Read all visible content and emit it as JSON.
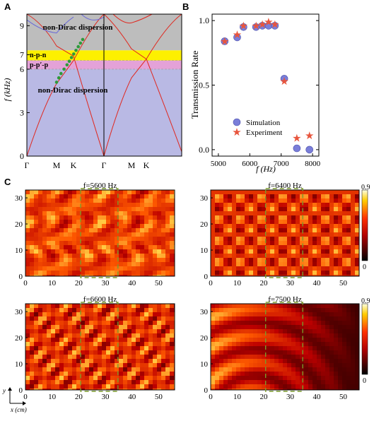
{
  "panels": {
    "A": {
      "letter": "A",
      "ylabel": "f (kHz)",
      "ytick_labels": [
        "0",
        "3",
        "6",
        "7",
        "9"
      ],
      "yticks": [
        0,
        3,
        6,
        7,
        9
      ],
      "xtick_labels": [
        "Γ",
        "M",
        "K",
        "Γ",
        "M",
        "K"
      ],
      "region_labels": {
        "top": "non-Dirac dispersion",
        "npn": "n-p-n",
        "ppp": "p-p′-p",
        "bottom": "non-Dirac dispersion"
      },
      "colors": {
        "gray_region": "#bdbdbd",
        "yellow_region": "#fdf000",
        "pink_region": "#e4a2d8",
        "blue_region": "#b9b9e4",
        "band_left": "#e0281f",
        "band_blue": "#6a6ad8",
        "dots": "#2e9a3a"
      },
      "ylim": [
        0,
        9.8
      ]
    },
    "B": {
      "letter": "B",
      "ylabel": "Transmission Rate",
      "xlabel": "f (Hz)",
      "legend_simulation": "Simulation",
      "legend_experiment": "Experiment",
      "ytick_labels": [
        "0.0",
        "0.5",
        "1.0"
      ],
      "xtick_labels": [
        "5000",
        "6000",
        "7000",
        "8000"
      ]
    },
    "C": {
      "letter": "C",
      "colorbar_max": "0.9",
      "colorbar_min": "0",
      "ytick_labels": [
        "0",
        "10",
        "20",
        "30"
      ],
      "xtick_labels": [
        "0",
        "10",
        "20",
        "30",
        "40",
        "50"
      ],
      "axis_y_label": "y",
      "axis_x_label": "x (cm)",
      "maps": [
        {
          "title": "f=5600 Hz",
          "frequency": 5600,
          "pattern": "wavy"
        },
        {
          "title": "f=6400 Hz",
          "frequency": 6400,
          "pattern": "dots"
        },
        {
          "title": "f=6600 Hz",
          "frequency": 6600,
          "pattern": "diagonal"
        },
        {
          "title": "f=7500 Hz",
          "frequency": 7500,
          "pattern": "decay"
        }
      ]
    }
  },
  "chart_data": [
    {
      "type": "line",
      "title": "",
      "ylabel": "f (kHz)",
      "xlabel": "",
      "ylim": [
        0,
        9.8
      ],
      "regions": [
        {
          "name": "non-Dirac dispersion",
          "from": 7.3,
          "to": 9.8
        },
        {
          "name": "n-p-n",
          "from": 6.6,
          "to": 7.3
        },
        {
          "name": "p-p′-p",
          "from": 6.0,
          "to": 6.6
        },
        {
          "name": "non-Dirac dispersion",
          "from": 0,
          "to": 6.0
        }
      ],
      "dirac_points": [
        {
          "k": 0.6,
          "f": 5.1
        },
        {
          "k": 0.63,
          "f": 5.4
        },
        {
          "k": 0.66,
          "f": 5.7
        },
        {
          "k": 0.7,
          "f": 6.0
        },
        {
          "k": 0.74,
          "f": 6.3
        },
        {
          "k": 0.77,
          "f": 6.55
        },
        {
          "k": 0.8,
          "f": 6.8
        },
        {
          "k": 0.83,
          "f": 7.05
        },
        {
          "k": 0.86,
          "f": 7.3
        },
        {
          "k": 0.89,
          "f": 7.55
        },
        {
          "k": 0.92,
          "f": 7.8
        },
        {
          "k": 0.95,
          "f": 8.05
        }
      ]
    },
    {
      "type": "scatter",
      "title": "",
      "xlabel": "f (Hz)",
      "ylabel": "Transmission Rate",
      "xlim": [
        4800,
        8200
      ],
      "ylim": [
        -0.05,
        1.05
      ],
      "series": [
        {
          "name": "Simulation",
          "x": [
            5200,
            5600,
            5800,
            6200,
            6400,
            6600,
            6800,
            7100,
            7500,
            7900
          ],
          "y": [
            0.84,
            0.87,
            0.95,
            0.95,
            0.96,
            0.96,
            0.96,
            0.55,
            0.01,
            0.0
          ]
        },
        {
          "name": "Experiment",
          "x": [
            5200,
            5600,
            5800,
            6200,
            6400,
            6600,
            6800,
            7100,
            7500,
            7900
          ],
          "y": [
            0.84,
            0.89,
            0.96,
            0.96,
            0.97,
            0.99,
            0.97,
            0.53,
            0.09,
            0.11
          ]
        }
      ],
      "legend": "bottom-center"
    }
  ]
}
